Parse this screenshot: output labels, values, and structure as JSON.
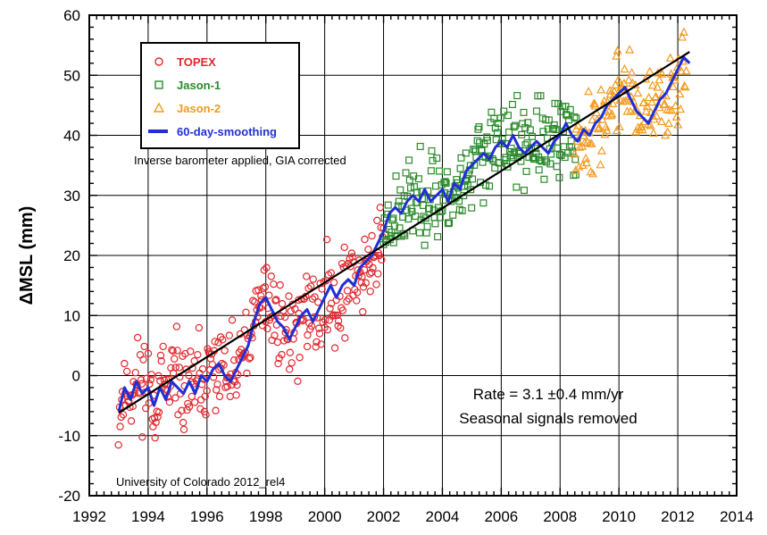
{
  "chart_data": {
    "type": "scatter",
    "title": "",
    "xlabel": "",
    "ylabel": "ΔMSL (mm)",
    "xlim": [
      1992,
      2014
    ],
    "ylim": [
      -20,
      60
    ],
    "x_ticks": [
      "1992",
      "1994",
      "1996",
      "1998",
      "2000",
      "2002",
      "2004",
      "2006",
      "2008",
      "2010",
      "2012",
      "2014"
    ],
    "y_ticks": [
      "-20",
      "-10",
      "0",
      "10",
      "20",
      "30",
      "40",
      "50",
      "60"
    ],
    "grid": true,
    "legend_position": "top-left",
    "annotations": {
      "processing": "Inverse barometer applied, GIA corrected",
      "rate": "Rate = 3.1 ±0.4 mm/yr",
      "seasonal": "Seasonal signals removed",
      "source": "University of Colorado 2012_rel4"
    },
    "trend": {
      "name": "linear trend",
      "slope_mm_per_yr": 3.1,
      "x": [
        1993.0,
        2012.4
      ],
      "y": [
        -6.2,
        53.9
      ]
    },
    "series": [
      {
        "name": "TOPEX",
        "marker": "circle",
        "color": "#e0282e",
        "seed": 11,
        "spread": 3.6,
        "points": [
          [
            1993.0,
            -7
          ],
          [
            1993.2,
            -2
          ],
          [
            1993.5,
            -3
          ],
          [
            1993.7,
            0
          ],
          [
            1994.0,
            -1
          ],
          [
            1994.2,
            -4
          ],
          [
            1994.5,
            -2
          ],
          [
            1994.7,
            -3
          ],
          [
            1995.0,
            -1
          ],
          [
            1995.2,
            -2
          ],
          [
            1995.5,
            -3
          ],
          [
            1995.7,
            -1
          ],
          [
            1996.0,
            -1
          ],
          [
            1996.2,
            1
          ],
          [
            1996.5,
            2
          ],
          [
            1996.7,
            -1
          ],
          [
            1997.0,
            0
          ],
          [
            1997.2,
            3
          ],
          [
            1997.5,
            6
          ],
          [
            1997.7,
            10
          ],
          [
            1998.0,
            13
          ],
          [
            1998.2,
            12
          ],
          [
            1998.4,
            9
          ],
          [
            1998.6,
            8
          ],
          [
            1998.8,
            7
          ],
          [
            1999.0,
            8
          ],
          [
            1999.2,
            9
          ],
          [
            1999.5,
            11
          ],
          [
            1999.7,
            10
          ],
          [
            2000.0,
            12
          ],
          [
            2000.3,
            14
          ],
          [
            2000.5,
            13
          ],
          [
            2000.8,
            15
          ],
          [
            2001.0,
            16
          ],
          [
            2001.3,
            18
          ],
          [
            2001.5,
            19
          ],
          [
            2001.8,
            21
          ],
          [
            2002.0,
            23
          ]
        ]
      },
      {
        "name": "Jason-1",
        "marker": "square",
        "color": "#2b8a2b",
        "seed": 23,
        "spread": 3.4,
        "points": [
          [
            2002.0,
            24
          ],
          [
            2002.3,
            27
          ],
          [
            2002.6,
            28
          ],
          [
            2003.0,
            29
          ],
          [
            2003.3,
            30
          ],
          [
            2003.6,
            29
          ],
          [
            2004.0,
            31
          ],
          [
            2004.3,
            29
          ],
          [
            2004.6,
            32
          ],
          [
            2005.0,
            35
          ],
          [
            2005.3,
            36
          ],
          [
            2005.6,
            37
          ],
          [
            2006.0,
            38
          ],
          [
            2006.3,
            39
          ],
          [
            2006.6,
            38
          ],
          [
            2007.0,
            38
          ],
          [
            2007.3,
            39
          ],
          [
            2007.6,
            38
          ],
          [
            2008.0,
            39
          ],
          [
            2008.3,
            41
          ],
          [
            2008.6,
            40
          ]
        ]
      },
      {
        "name": "Jason-2",
        "marker": "triangle",
        "color": "#f29a1f",
        "seed": 37,
        "spread": 3.4,
        "points": [
          [
            2008.5,
            40
          ],
          [
            2008.8,
            41
          ],
          [
            2009.0,
            40
          ],
          [
            2009.3,
            42
          ],
          [
            2009.6,
            44
          ],
          [
            2010.0,
            47
          ],
          [
            2010.3,
            48
          ],
          [
            2010.6,
            44
          ],
          [
            2011.0,
            43
          ],
          [
            2011.3,
            45
          ],
          [
            2011.6,
            46
          ],
          [
            2012.0,
            50
          ],
          [
            2012.3,
            53
          ]
        ]
      },
      {
        "name": "60-day-smoothing",
        "marker": "line",
        "color": "#1f2fd6",
        "points": [
          [
            1993.0,
            -6
          ],
          [
            1993.2,
            -2
          ],
          [
            1993.4,
            -4
          ],
          [
            1993.6,
            -1
          ],
          [
            1993.8,
            -3
          ],
          [
            1994.0,
            -2
          ],
          [
            1994.2,
            -5
          ],
          [
            1994.4,
            -2
          ],
          [
            1994.6,
            -4
          ],
          [
            1994.8,
            -1
          ],
          [
            1995.0,
            -2
          ],
          [
            1995.2,
            -3
          ],
          [
            1995.4,
            -1
          ],
          [
            1995.6,
            -3
          ],
          [
            1995.8,
            0
          ],
          [
            1996.0,
            -1
          ],
          [
            1996.2,
            1
          ],
          [
            1996.4,
            2
          ],
          [
            1996.6,
            0
          ],
          [
            1996.8,
            -1
          ],
          [
            1997.0,
            1
          ],
          [
            1997.2,
            3
          ],
          [
            1997.4,
            5
          ],
          [
            1997.6,
            9
          ],
          [
            1997.8,
            12
          ],
          [
            1998.0,
            13
          ],
          [
            1998.2,
            11
          ],
          [
            1998.4,
            9
          ],
          [
            1998.6,
            8
          ],
          [
            1998.8,
            6
          ],
          [
            1999.0,
            8
          ],
          [
            1999.2,
            10
          ],
          [
            1999.4,
            11
          ],
          [
            1999.6,
            9
          ],
          [
            1999.8,
            11
          ],
          [
            2000.0,
            13
          ],
          [
            2000.2,
            15
          ],
          [
            2000.4,
            13
          ],
          [
            2000.6,
            15
          ],
          [
            2000.8,
            16
          ],
          [
            2001.0,
            15
          ],
          [
            2001.2,
            18
          ],
          [
            2001.4,
            19
          ],
          [
            2001.6,
            20
          ],
          [
            2001.8,
            22
          ],
          [
            2002.0,
            24
          ],
          [
            2002.2,
            27
          ],
          [
            2002.4,
            28
          ],
          [
            2002.6,
            27
          ],
          [
            2002.8,
            29
          ],
          [
            2003.0,
            30
          ],
          [
            2003.2,
            29
          ],
          [
            2003.4,
            31
          ],
          [
            2003.6,
            29
          ],
          [
            2003.8,
            30
          ],
          [
            2004.0,
            31
          ],
          [
            2004.2,
            29
          ],
          [
            2004.4,
            32
          ],
          [
            2004.6,
            31
          ],
          [
            2004.8,
            34
          ],
          [
            2005.0,
            35
          ],
          [
            2005.2,
            36
          ],
          [
            2005.4,
            37
          ],
          [
            2005.6,
            36
          ],
          [
            2005.8,
            38
          ],
          [
            2006.0,
            39
          ],
          [
            2006.2,
            38
          ],
          [
            2006.4,
            40
          ],
          [
            2006.6,
            38
          ],
          [
            2006.8,
            37
          ],
          [
            2007.0,
            38
          ],
          [
            2007.2,
            39
          ],
          [
            2007.4,
            38
          ],
          [
            2007.6,
            37
          ],
          [
            2007.8,
            39
          ],
          [
            2008.0,
            40
          ],
          [
            2008.2,
            42
          ],
          [
            2008.4,
            40
          ],
          [
            2008.6,
            39
          ],
          [
            2008.8,
            41
          ],
          [
            2009.0,
            40
          ],
          [
            2009.2,
            42
          ],
          [
            2009.4,
            43
          ],
          [
            2009.6,
            45
          ],
          [
            2009.8,
            46
          ],
          [
            2010.0,
            47
          ],
          [
            2010.2,
            48
          ],
          [
            2010.4,
            46
          ],
          [
            2010.6,
            44
          ],
          [
            2010.8,
            43
          ],
          [
            2011.0,
            42
          ],
          [
            2011.2,
            44
          ],
          [
            2011.4,
            46
          ],
          [
            2011.6,
            47
          ],
          [
            2011.8,
            49
          ],
          [
            2012.0,
            51
          ],
          [
            2012.2,
            53
          ],
          [
            2012.4,
            52
          ]
        ]
      }
    ]
  }
}
